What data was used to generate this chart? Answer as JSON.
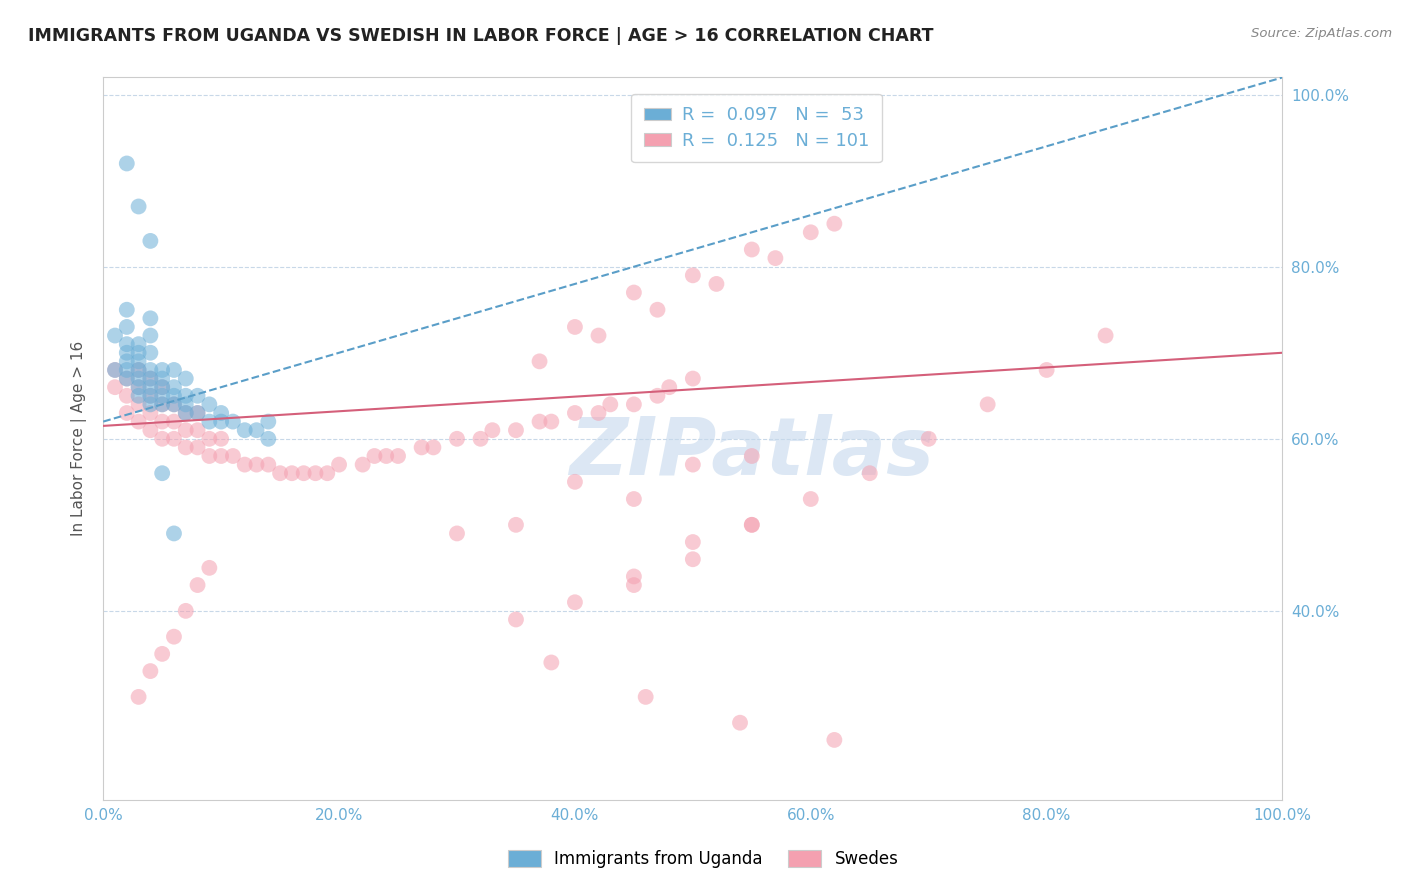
{
  "title": "IMMIGRANTS FROM UGANDA VS SWEDISH IN LABOR FORCE | AGE > 16 CORRELATION CHART",
  "source": "Source: ZipAtlas.com",
  "ylabel": "In Labor Force | Age > 16",
  "xlim": [
    0.0,
    1.0
  ],
  "ylim": [
    0.18,
    1.02
  ],
  "xticks": [
    0.0,
    0.2,
    0.4,
    0.6,
    0.8,
    1.0
  ],
  "yticks": [
    0.4,
    0.6,
    0.8,
    1.0
  ],
  "ytick_labels": [
    "40.0%",
    "60.0%",
    "80.0%",
    "100.0%"
  ],
  "xtick_labels": [
    "0.0%",
    "20.0%",
    "40.0%",
    "60.0%",
    "80.0%",
    "100.0%"
  ],
  "color_blue": "#6baed6",
  "color_pink": "#f4a0b0",
  "color_trendline_blue": "#5a9ec8",
  "color_trendline_pink": "#d45f7a",
  "color_axis_text": "#6baed6",
  "watermark": "ZIPatlas",
  "watermark_color": "#c5d8ed",
  "blue_x": [
    0.01,
    0.01,
    0.02,
    0.02,
    0.02,
    0.02,
    0.02,
    0.02,
    0.02,
    0.03,
    0.03,
    0.03,
    0.03,
    0.03,
    0.03,
    0.03,
    0.04,
    0.04,
    0.04,
    0.04,
    0.04,
    0.04,
    0.04,
    0.04,
    0.05,
    0.05,
    0.05,
    0.05,
    0.05,
    0.06,
    0.06,
    0.06,
    0.06,
    0.07,
    0.07,
    0.07,
    0.07,
    0.08,
    0.08,
    0.09,
    0.09,
    0.1,
    0.1,
    0.11,
    0.12,
    0.13,
    0.14,
    0.14,
    0.03,
    0.02,
    0.04,
    0.05,
    0.06
  ],
  "blue_y": [
    0.68,
    0.72,
    0.67,
    0.68,
    0.69,
    0.7,
    0.71,
    0.73,
    0.75,
    0.65,
    0.66,
    0.67,
    0.68,
    0.69,
    0.7,
    0.71,
    0.64,
    0.65,
    0.66,
    0.67,
    0.68,
    0.7,
    0.72,
    0.74,
    0.64,
    0.65,
    0.66,
    0.67,
    0.68,
    0.64,
    0.65,
    0.66,
    0.68,
    0.63,
    0.64,
    0.65,
    0.67,
    0.63,
    0.65,
    0.62,
    0.64,
    0.62,
    0.63,
    0.62,
    0.61,
    0.61,
    0.6,
    0.62,
    0.87,
    0.92,
    0.83,
    0.56,
    0.49
  ],
  "pink_x": [
    0.01,
    0.01,
    0.02,
    0.02,
    0.02,
    0.03,
    0.03,
    0.03,
    0.03,
    0.04,
    0.04,
    0.04,
    0.04,
    0.05,
    0.05,
    0.05,
    0.05,
    0.06,
    0.06,
    0.06,
    0.07,
    0.07,
    0.07,
    0.08,
    0.08,
    0.08,
    0.09,
    0.09,
    0.1,
    0.1,
    0.11,
    0.12,
    0.13,
    0.14,
    0.15,
    0.16,
    0.17,
    0.18,
    0.19,
    0.2,
    0.22,
    0.23,
    0.24,
    0.25,
    0.27,
    0.28,
    0.3,
    0.32,
    0.33,
    0.35,
    0.37,
    0.38,
    0.4,
    0.42,
    0.43,
    0.45,
    0.47,
    0.48,
    0.5,
    0.3,
    0.35,
    0.4,
    0.45,
    0.5,
    0.55,
    0.4,
    0.45,
    0.5,
    0.55,
    0.6,
    0.37,
    0.42,
    0.47,
    0.52,
    0.57,
    0.62,
    0.45,
    0.5,
    0.55,
    0.35,
    0.4,
    0.45,
    0.5,
    0.55,
    0.6,
    0.65,
    0.7,
    0.75,
    0.8,
    0.85,
    0.03,
    0.04,
    0.05,
    0.06,
    0.07,
    0.08,
    0.09,
    0.38,
    0.46,
    0.54,
    0.62
  ],
  "pink_y": [
    0.66,
    0.68,
    0.63,
    0.65,
    0.67,
    0.62,
    0.64,
    0.66,
    0.68,
    0.61,
    0.63,
    0.65,
    0.67,
    0.6,
    0.62,
    0.64,
    0.66,
    0.6,
    0.62,
    0.64,
    0.59,
    0.61,
    0.63,
    0.59,
    0.61,
    0.63,
    0.58,
    0.6,
    0.58,
    0.6,
    0.58,
    0.57,
    0.57,
    0.57,
    0.56,
    0.56,
    0.56,
    0.56,
    0.56,
    0.57,
    0.57,
    0.58,
    0.58,
    0.58,
    0.59,
    0.59,
    0.6,
    0.6,
    0.61,
    0.61,
    0.62,
    0.62,
    0.63,
    0.63,
    0.64,
    0.64,
    0.65,
    0.66,
    0.67,
    0.49,
    0.5,
    0.55,
    0.53,
    0.57,
    0.58,
    0.73,
    0.77,
    0.79,
    0.82,
    0.84,
    0.69,
    0.72,
    0.75,
    0.78,
    0.81,
    0.85,
    0.43,
    0.46,
    0.5,
    0.39,
    0.41,
    0.44,
    0.48,
    0.5,
    0.53,
    0.56,
    0.6,
    0.64,
    0.68,
    0.72,
    0.3,
    0.33,
    0.35,
    0.37,
    0.4,
    0.43,
    0.45,
    0.34,
    0.3,
    0.27,
    0.25
  ],
  "trendline_blue_x0": 0.0,
  "trendline_blue_x1": 1.0,
  "trendline_blue_y0": 0.62,
  "trendline_blue_y1": 1.02,
  "trendline_pink_x0": 0.0,
  "trendline_pink_x1": 1.0,
  "trendline_pink_y0": 0.615,
  "trendline_pink_y1": 0.7
}
